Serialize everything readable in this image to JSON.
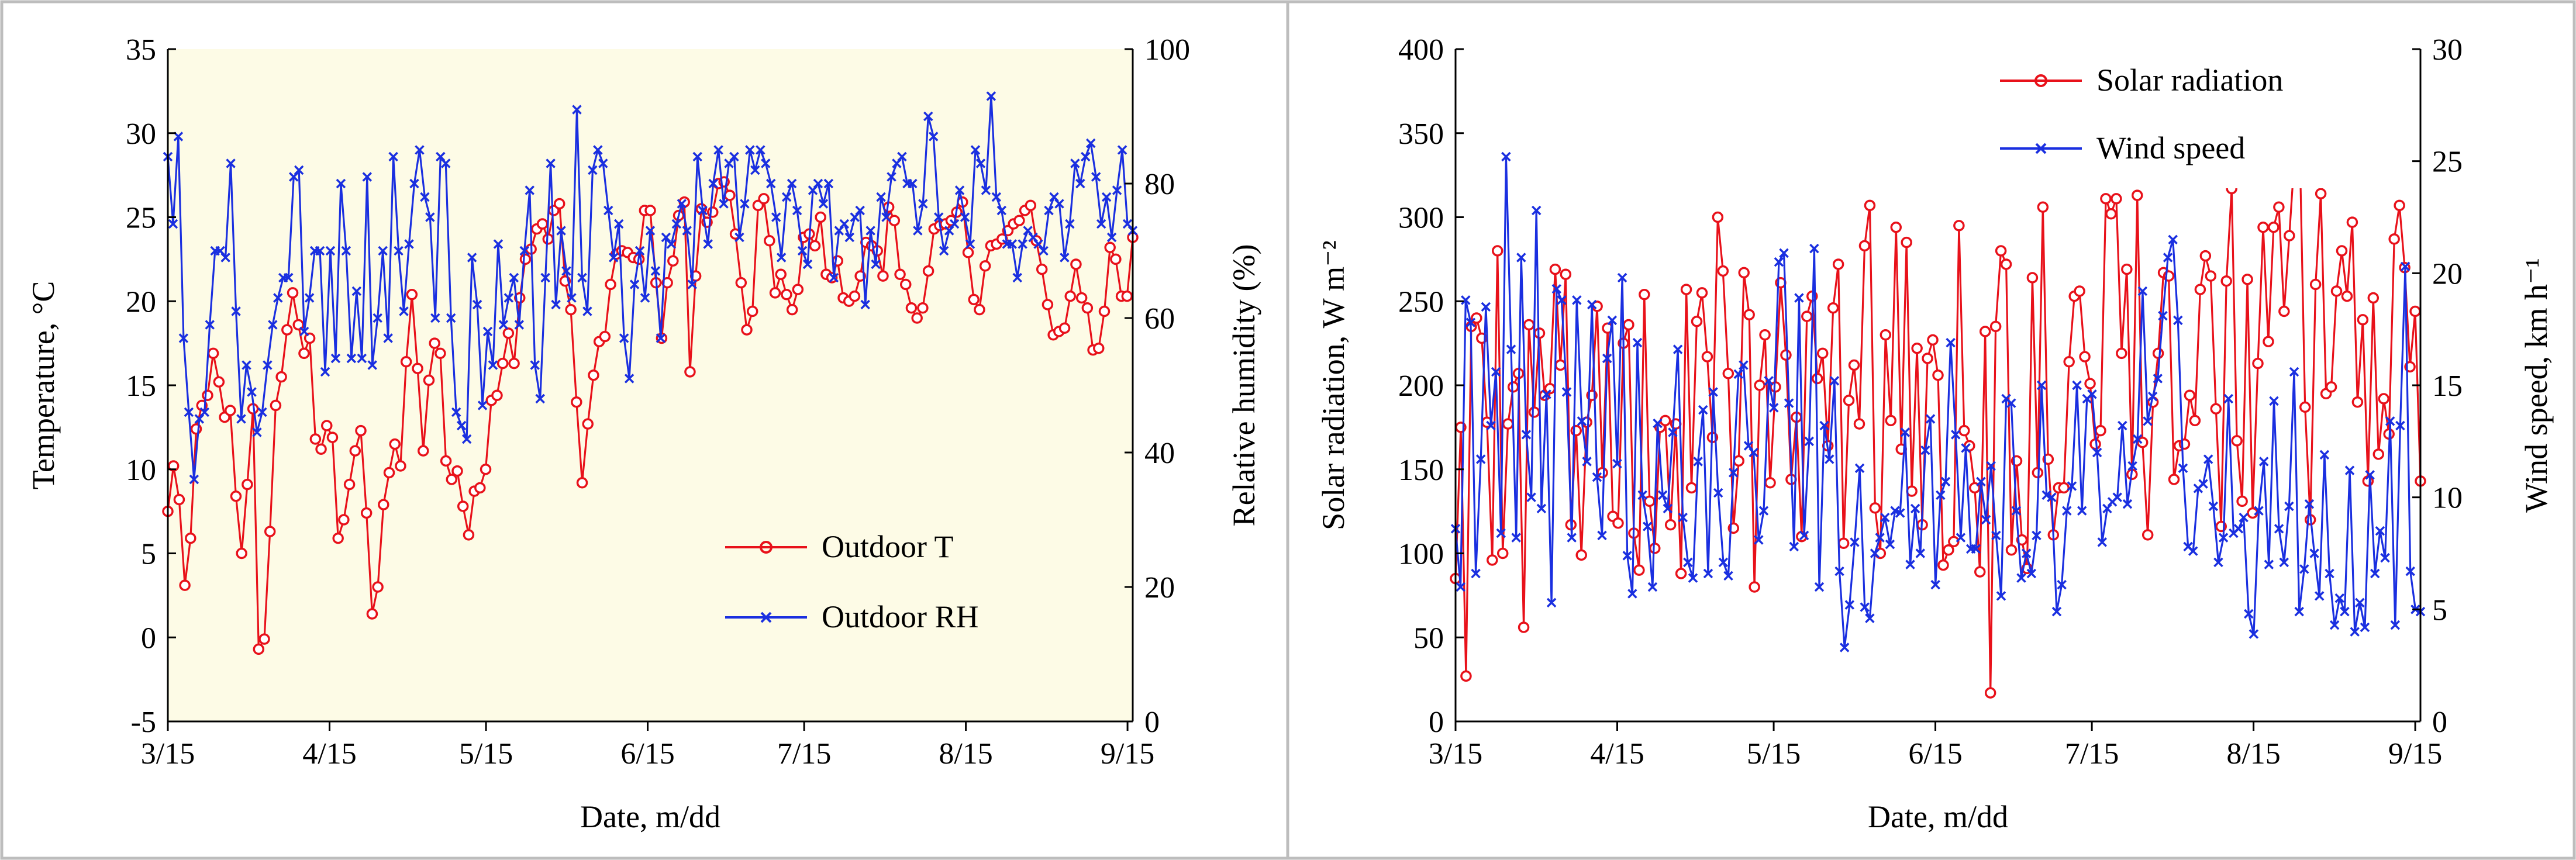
{
  "colors": {
    "red": "#e8111a",
    "blue": "#1a2fe0",
    "plot_bg_left": "#fdfbe6",
    "plot_bg_right": "#ffffff"
  },
  "chart_data": [
    {
      "type": "line",
      "title": "",
      "xlabel": "Date, m/dd",
      "ylabel": "Temperature, °C",
      "y2label": "Relative humidity (%)",
      "x_ticks": [
        "3/15",
        "4/15",
        "5/15",
        "6/15",
        "7/15",
        "8/15",
        "9/15"
      ],
      "y_ticks": [
        "-5",
        "0",
        "5",
        "10",
        "15",
        "20",
        "25",
        "30",
        "35"
      ],
      "y2_ticks": [
        "0",
        "20",
        "40",
        "60",
        "80",
        "100"
      ],
      "xlim": [
        0,
        185
      ],
      "ylim": [
        -5,
        35
      ],
      "y2lim": [
        0,
        100
      ],
      "legend_position": "bottom-right",
      "series": [
        {
          "name": "Outdoor T",
          "axis": "left",
          "marker": "circle",
          "color": "red",
          "values": [
            7.5,
            10.2,
            8.2,
            3.1,
            5.9,
            12.4,
            13.8,
            14.4,
            16.9,
            15.2,
            13.1,
            13.5,
            8.4,
            5.0,
            9.1,
            13.6,
            -0.7,
            -0.1,
            6.3,
            13.8,
            15.5,
            18.3,
            20.5,
            18.6,
            16.9,
            17.8,
            11.8,
            11.2,
            12.6,
            11.9,
            5.9,
            7.0,
            9.1,
            11.1,
            12.3,
            7.4,
            1.4,
            3.0,
            7.9,
            9.8,
            11.5,
            10.2,
            16.4,
            20.4,
            16.0,
            11.1,
            15.3,
            17.5,
            16.9,
            10.5,
            9.4,
            9.9,
            7.8,
            6.1,
            8.7,
            8.9,
            10.0,
            14.1,
            14.4,
            16.3,
            18.1,
            16.3,
            20.2,
            22.5,
            23.1,
            24.3,
            24.6,
            23.7,
            25.4,
            25.8,
            21.2,
            19.5,
            14.0,
            9.2,
            12.7,
            15.6,
            17.6,
            17.9,
            21.0,
            22.8,
            23.0,
            22.9,
            22.6,
            22.5,
            25.4,
            25.4,
            21.1,
            17.8,
            21.1,
            22.4,
            25.1,
            25.9,
            15.8,
            21.5,
            25.5,
            24.7,
            25.3,
            27.0,
            27.1,
            26.3,
            24.0,
            21.1,
            18.3,
            19.4,
            25.7,
            26.1,
            23.6,
            20.5,
            21.6,
            20.4,
            19.5,
            20.7,
            23.8,
            24.0,
            23.3,
            25.0,
            21.6,
            21.4,
            22.4,
            20.2,
            20.0,
            20.3,
            21.5,
            23.5,
            23.3,
            23.0,
            21.5,
            25.6,
            24.8,
            21.6,
            21.0,
            19.6,
            19.0,
            19.6,
            21.8,
            24.3,
            24.5,
            24.6,
            24.8,
            25.3,
            25.9,
            22.9,
            20.1,
            19.5,
            22.1,
            23.3,
            23.4,
            23.7,
            24.2,
            24.6,
            24.8,
            25.4,
            25.7,
            23.6,
            21.9,
            19.8,
            18.0,
            18.2,
            18.4,
            20.3,
            22.2,
            20.2,
            19.6,
            17.1,
            17.2,
            19.4,
            23.2,
            22.5,
            20.3,
            20.3,
            23.8
          ]
        },
        {
          "name": "Outdoor RH",
          "axis": "right",
          "marker": "x",
          "color": "blue",
          "values": [
            84,
            74,
            87,
            57,
            46,
            36,
            45,
            46,
            59,
            70,
            70,
            69,
            83,
            61,
            45,
            53,
            49,
            43,
            46,
            53,
            59,
            63,
            66,
            66,
            81,
            82,
            58,
            63,
            70,
            70,
            52,
            70,
            54,
            80,
            70,
            54,
            64,
            54,
            81,
            53,
            60,
            70,
            57,
            84,
            70,
            61,
            71,
            80,
            85,
            78,
            75,
            60,
            84,
            83,
            60,
            46,
            44,
            42,
            69,
            62,
            47,
            58,
            53,
            71,
            59,
            63,
            66,
            59,
            70,
            79,
            53,
            48,
            66,
            83,
            62,
            73,
            67,
            63,
            91,
            66,
            61,
            82,
            85,
            83,
            76,
            69,
            74,
            57,
            51,
            65,
            70,
            63,
            73,
            67,
            57,
            72,
            71,
            74,
            77,
            73,
            65,
            84,
            76,
            71,
            80,
            85,
            77,
            83,
            84,
            72,
            77,
            85,
            82,
            85,
            83,
            80,
            75,
            69,
            78,
            80,
            76,
            70,
            68,
            79,
            80,
            77,
            80,
            66,
            73,
            74,
            72,
            75,
            76,
            62,
            73,
            68,
            78,
            75,
            81,
            83,
            84,
            80,
            80,
            73,
            77,
            90,
            87,
            75,
            70,
            73,
            74,
            79,
            75,
            71,
            85,
            83,
            79,
            93,
            78,
            76,
            71,
            71,
            66,
            71,
            73,
            72,
            71,
            70,
            76,
            78,
            77,
            69,
            74,
            83,
            80,
            84,
            86,
            81,
            74,
            78,
            72,
            79,
            85,
            74,
            73
          ]
        }
      ]
    },
    {
      "type": "line",
      "title": "",
      "xlabel": "Date, m/dd",
      "ylabel": "Solar radiation, W m⁻²",
      "y2label": "Wind speed, km h⁻¹",
      "x_ticks": [
        "3/15",
        "4/15",
        "5/15",
        "6/15",
        "7/15",
        "8/15",
        "9/15"
      ],
      "y_ticks": [
        "0",
        "50",
        "100",
        "150",
        "200",
        "250",
        "300",
        "350",
        "400"
      ],
      "y2_ticks": [
        "0",
        "5",
        "10",
        "15",
        "20",
        "25",
        "30"
      ],
      "xlim": [
        0,
        185
      ],
      "ylim": [
        0,
        400
      ],
      "y2lim": [
        0,
        30
      ],
      "legend_position": "top-right",
      "series": [
        {
          "name": "Solar radiation",
          "axis": "left",
          "marker": "circle",
          "color": "red",
          "values": [
            85,
            175,
            27,
            235,
            240,
            228,
            178,
            96,
            280,
            100,
            177,
            199,
            207,
            56,
            236,
            184,
            231,
            194,
            198,
            269,
            212,
            266,
            117,
            173,
            99,
            178,
            194,
            247,
            148,
            234,
            122,
            118,
            225,
            236,
            112,
            90,
            254,
            131,
            103,
            175,
            179,
            117,
            177,
            88,
            257,
            139,
            238,
            255,
            217,
            169,
            300,
            268,
            207,
            115,
            155,
            267,
            242,
            80,
            200,
            230,
            142,
            199,
            261,
            218,
            144,
            181,
            110,
            241,
            253,
            204,
            219,
            164,
            246,
            272,
            106,
            191,
            212,
            177,
            283,
            307,
            127,
            100,
            230,
            179,
            294,
            162,
            285,
            137,
            222,
            117,
            216,
            227,
            206,
            93,
            102,
            107,
            295,
            173,
            164,
            139,
            89,
            232,
            17,
            235,
            280,
            272,
            102,
            155,
            108,
            91,
            264,
            148,
            306,
            156,
            111,
            139,
            139,
            214,
            253,
            256,
            217,
            201,
            165,
            173,
            311,
            302,
            311,
            219,
            269,
            147,
            313,
            166,
            111,
            190,
            219,
            267,
            265,
            144,
            164,
            165,
            194,
            179,
            257,
            277,
            265,
            186,
            116,
            262,
            317,
            167,
            131,
            263,
            124,
            213,
            294,
            226,
            294,
            306,
            244,
            289,
            337,
            340,
            187,
            120,
            260,
            314,
            195,
            199,
            256,
            280,
            253,
            297,
            190,
            239,
            143,
            252,
            159,
            192,
            171,
            287,
            307,
            270,
            211,
            244,
            143
          ],
          "_note": "values in W m-2 (first ~185 days, daily)"
        },
        {
          "name": "Wind speed",
          "axis": "right",
          "marker": "x",
          "color": "blue",
          "values": [
            8.6,
            6.0,
            18.8,
            17.8,
            6.6,
            11.7,
            18.5,
            13.2,
            15.6,
            8.4,
            25.2,
            16.6,
            8.2,
            20.7,
            12.8,
            10.0,
            22.8,
            9.5,
            14.6,
            5.3,
            19.3,
            18.8,
            14.7,
            8.2,
            18.8,
            13.4,
            11.6,
            18.6,
            10.9,
            8.3,
            16.2,
            17.9,
            11.5,
            19.8,
            7.4,
            5.7,
            16.9,
            10.1,
            8.7,
            6.0,
            13.3,
            10.1,
            9.5,
            12.9,
            16.6,
            9.1,
            7.1,
            6.4,
            11.6,
            13.9,
            6.6,
            14.7,
            10.2,
            7.1,
            6.5,
            11.1,
            15.5,
            15.9,
            12.3,
            12.0,
            8.1,
            9.4,
            15.2,
            14.0,
            20.5,
            20.9,
            14.2,
            7.8,
            18.9,
            8.3,
            12.5,
            21.1,
            6.0,
            13.2,
            11.7,
            15.2,
            6.7,
            3.3,
            5.2,
            8.0,
            11.3,
            5.1,
            4.6,
            7.5,
            8.2,
            9.1,
            7.9,
            9.4,
            9.3,
            12.9,
            7.0,
            9.5,
            7.5,
            12.1,
            13.5,
            6.1,
            10.1,
            10.7,
            16.9,
            12.8,
            8.2,
            12.2,
            7.7,
            7.7,
            10.7,
            9.0,
            11.4,
            8.3,
            5.6,
            14.4,
            14.2,
            9.4,
            6.4,
            7.5,
            6.6,
            8.3,
            15.0,
            10.1,
            10.0,
            4.9,
            6.1,
            9.4,
            10.5,
            15.0,
            9.4,
            14.4,
            14.6,
            12.0,
            8.0,
            9.5,
            9.8,
            10.0,
            13.2,
            9.7,
            11.4,
            12.6,
            19.2,
            13.4,
            14.5,
            15.3,
            18.1,
            20.7,
            21.5,
            17.9,
            11.3,
            7.8,
            7.6,
            10.4,
            10.6,
            11.7,
            9.6,
            7.1,
            8.2,
            14.4,
            8.4,
            8.6,
            9.1,
            4.8,
            3.9,
            9.4,
            11.6,
            7.0,
            14.3,
            8.6,
            7.1,
            9.6,
            15.6,
            4.9,
            6.8,
            9.7,
            7.5,
            5.6,
            11.9,
            6.6,
            4.3,
            5.5,
            4.9,
            11.2,
            4.0,
            5.3,
            4.2,
            11.0,
            6.6,
            8.5,
            7.3,
            13.4,
            4.3,
            13.2,
            20.3,
            6.7,
            5.0,
            4.9
          ],
          "_note": "values in km h-1"
        }
      ]
    }
  ],
  "legend_left": {
    "item1": "Outdoor T",
    "item2": "Outdoor RH"
  },
  "legend_right": {
    "item1": "Solar radiation",
    "item2": "Wind speed"
  }
}
